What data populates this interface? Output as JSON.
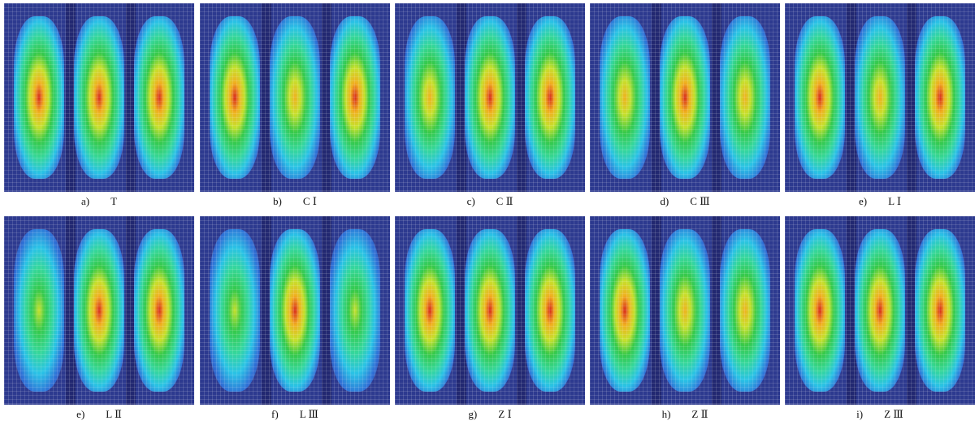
{
  "panels": [
    {
      "label": "a)",
      "name": "T",
      "peaks": [
        0.85,
        1.0,
        0.85
      ]
    },
    {
      "label": "b)",
      "name": "C Ⅰ",
      "peaks": [
        1.0,
        0.7,
        1.0
      ]
    },
    {
      "label": "c)",
      "name": "C Ⅱ",
      "peaks": [
        0.6,
        0.75,
        1.0
      ]
    },
    {
      "label": "d)",
      "name": "C Ⅲ",
      "peaks": [
        0.7,
        1.0,
        0.7
      ]
    },
    {
      "label": "e)",
      "name": "L Ⅰ",
      "peaks": [
        1.0,
        0.65,
        1.0
      ]
    },
    {
      "label": "e)",
      "name": "L Ⅱ",
      "peaks": [
        0.55,
        0.8,
        1.0
      ]
    },
    {
      "label": "f)",
      "name": "L Ⅲ",
      "peaks": [
        0.55,
        1.0,
        0.55
      ]
    },
    {
      "label": "g)",
      "name": "Z Ⅰ",
      "peaks": [
        0.8,
        1.0,
        0.8
      ]
    },
    {
      "label": "h)",
      "name": "Z Ⅱ",
      "peaks": [
        1.0,
        0.6,
        0.6
      ]
    },
    {
      "label": "i)",
      "name": "Z Ⅲ",
      "peaks": [
        1.0,
        0.8,
        1.0
      ]
    }
  ],
  "colors": {
    "background": "#2d3a8f",
    "scale": [
      "#2d3a8f",
      "#2f6fd6",
      "#29c2e6",
      "#35d79a",
      "#35c94a",
      "#c6e02c",
      "#f0b01f",
      "#d72a1e"
    ]
  }
}
